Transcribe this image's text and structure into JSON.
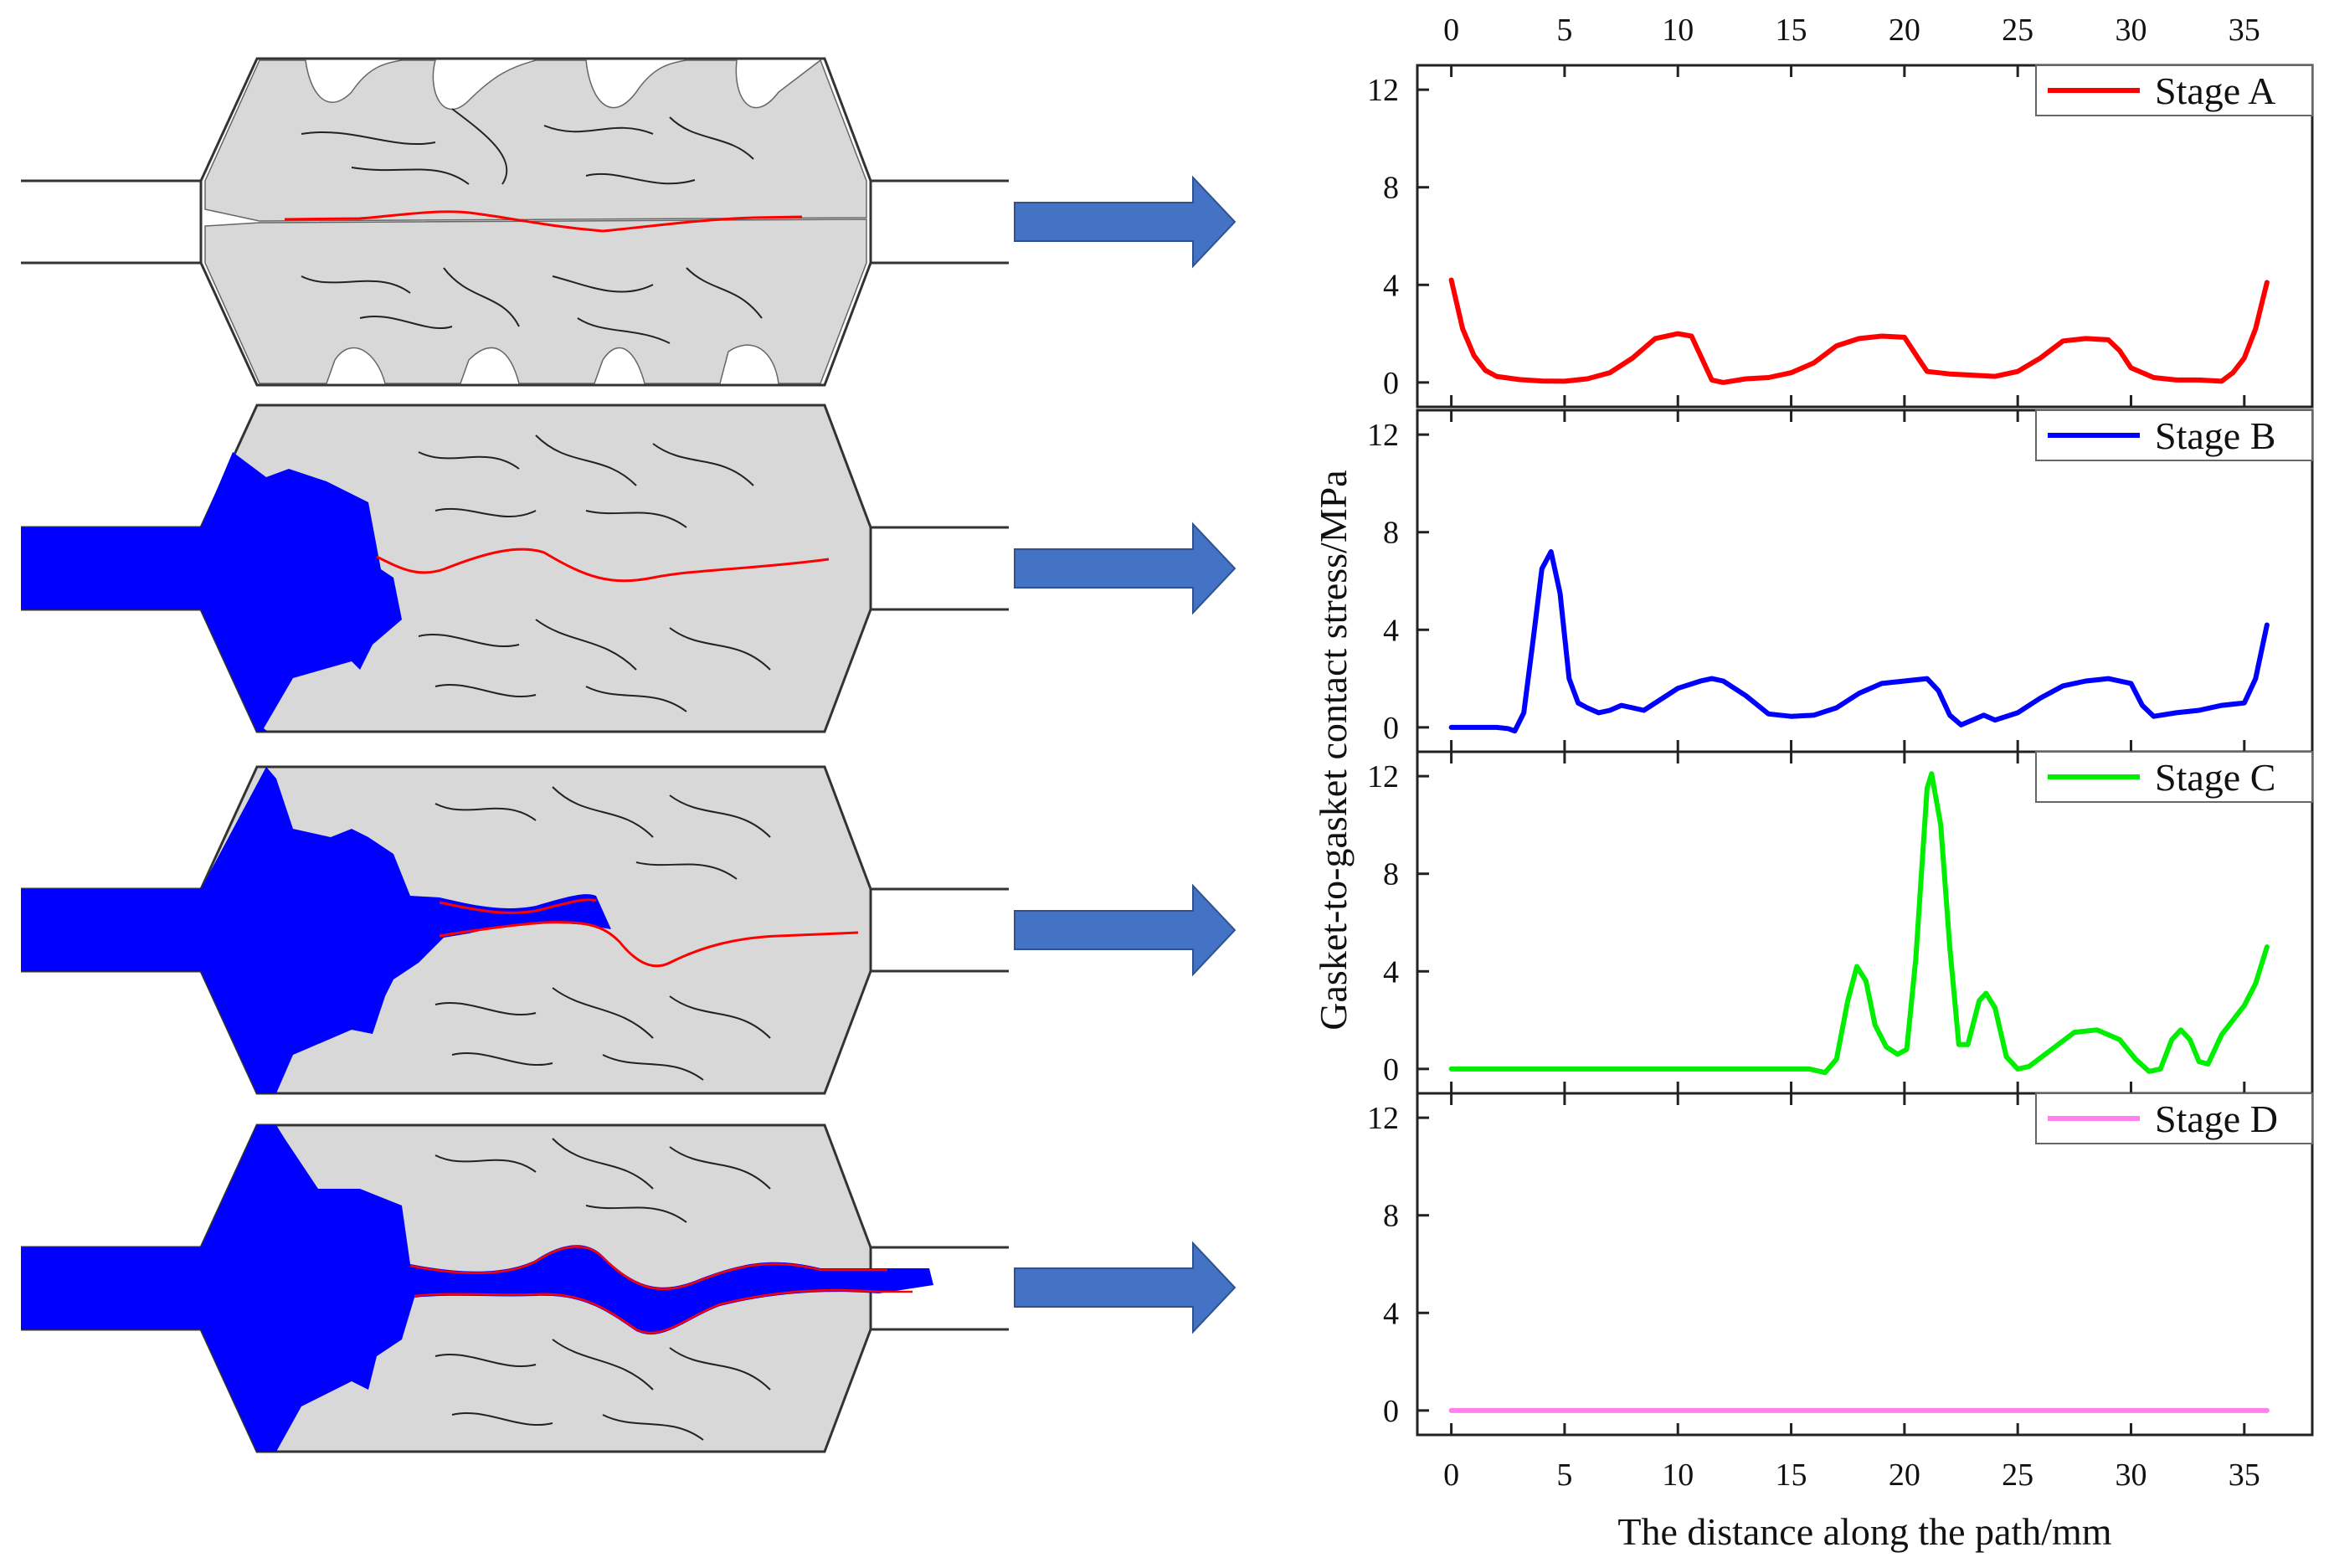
{
  "colors": {
    "stage_a": "#ff0000",
    "stage_b": "#0000ff",
    "stage_c": "#00ee00",
    "stage_d": "#ff80ee",
    "gasket_fill": "#d8d8d8",
    "fluid": "#0000ff",
    "crack_line": "#ff0000",
    "arrow": "#4472c4"
  },
  "diagram": {
    "panels": [
      "gasket-state-stage-a",
      "gasket-state-stage-b",
      "gasket-state-stage-c",
      "gasket-state-stage-d"
    ],
    "arrow_icon": "right-arrow-icon"
  },
  "chart_data": {
    "type": "line",
    "layout": "4 stacked panels sharing x axis",
    "xlabel": "The distance along the path/mm",
    "ylabel": "Gasket-to-gasket contact stress/MPa",
    "xlim": [
      -1.5,
      38
    ],
    "ylim": [
      -1,
      13
    ],
    "x_ticks": [
      0,
      5,
      10,
      15,
      20,
      25,
      30,
      35
    ],
    "y_ticks": [
      0,
      4,
      8,
      12
    ],
    "grid": false,
    "legend_position": "top-right",
    "series": [
      {
        "name": "Stage A",
        "color": "#ff0000",
        "points": [
          [
            0,
            4.2
          ],
          [
            0.5,
            2.2
          ],
          [
            1,
            1.1
          ],
          [
            1.5,
            0.5
          ],
          [
            2,
            0.25
          ],
          [
            3,
            0.12
          ],
          [
            4,
            0.06
          ],
          [
            5,
            0.05
          ],
          [
            6,
            0.15
          ],
          [
            7,
            0.4
          ],
          [
            8,
            1.0
          ],
          [
            9,
            1.8
          ],
          [
            10,
            2.0
          ],
          [
            10.6,
            1.9
          ],
          [
            11,
            1.1
          ],
          [
            11.5,
            0.1
          ],
          [
            12,
            0
          ],
          [
            13,
            0.15
          ],
          [
            14,
            0.2
          ],
          [
            15,
            0.4
          ],
          [
            16,
            0.8
          ],
          [
            17,
            1.5
          ],
          [
            18,
            1.8
          ],
          [
            19,
            1.9
          ],
          [
            20,
            1.85
          ],
          [
            20.6,
            1.0
          ],
          [
            21,
            0.45
          ],
          [
            22,
            0.35
          ],
          [
            23,
            0.3
          ],
          [
            24,
            0.25
          ],
          [
            25,
            0.45
          ],
          [
            26,
            1.0
          ],
          [
            27,
            1.7
          ],
          [
            28,
            1.8
          ],
          [
            29,
            1.75
          ],
          [
            29.5,
            1.3
          ],
          [
            30,
            0.6
          ],
          [
            31,
            0.2
          ],
          [
            32,
            0.1
          ],
          [
            33,
            0.1
          ],
          [
            34,
            0.05
          ],
          [
            34.5,
            0.4
          ],
          [
            35,
            1.0
          ],
          [
            35.5,
            2.2
          ],
          [
            36,
            4.1
          ]
        ]
      },
      {
        "name": "Stage B",
        "color": "#0000ff",
        "points": [
          [
            0,
            0
          ],
          [
            1,
            0
          ],
          [
            2,
            0
          ],
          [
            2.5,
            -0.05
          ],
          [
            2.8,
            -0.15
          ],
          [
            3.2,
            0.6
          ],
          [
            3.6,
            3.5
          ],
          [
            4,
            6.5
          ],
          [
            4.4,
            7.2
          ],
          [
            4.8,
            5.5
          ],
          [
            5.2,
            2.0
          ],
          [
            5.6,
            1.0
          ],
          [
            6,
            0.8
          ],
          [
            6.5,
            0.6
          ],
          [
            7,
            0.7
          ],
          [
            7.5,
            0.9
          ],
          [
            8,
            0.8
          ],
          [
            8.5,
            0.7
          ],
          [
            9,
            1.0
          ],
          [
            10,
            1.6
          ],
          [
            11,
            1.9
          ],
          [
            11.5,
            2.0
          ],
          [
            12,
            1.9
          ],
          [
            13,
            1.3
          ],
          [
            14,
            0.55
          ],
          [
            15,
            0.45
          ],
          [
            16,
            0.5
          ],
          [
            17,
            0.8
          ],
          [
            18,
            1.4
          ],
          [
            19,
            1.8
          ],
          [
            20,
            1.9
          ],
          [
            21,
            2.0
          ],
          [
            21.5,
            1.5
          ],
          [
            22,
            0.5
          ],
          [
            22.5,
            0.1
          ],
          [
            23,
            0.3
          ],
          [
            23.5,
            0.5
          ],
          [
            24,
            0.3
          ],
          [
            25,
            0.6
          ],
          [
            26,
            1.2
          ],
          [
            27,
            1.7
          ],
          [
            28,
            1.9
          ],
          [
            29,
            2.0
          ],
          [
            30,
            1.8
          ],
          [
            30.5,
            0.9
          ],
          [
            31,
            0.45
          ],
          [
            32,
            0.6
          ],
          [
            33,
            0.7
          ],
          [
            34,
            0.9
          ],
          [
            35,
            1.0
          ],
          [
            35.5,
            2.0
          ],
          [
            36,
            4.2
          ]
        ]
      },
      {
        "name": "Stage C",
        "color": "#00ee00",
        "points": [
          [
            0,
            0
          ],
          [
            5,
            0
          ],
          [
            10,
            0
          ],
          [
            15,
            0
          ],
          [
            15.8,
            0
          ],
          [
            16.5,
            -0.15
          ],
          [
            17,
            0.4
          ],
          [
            17.5,
            2.8
          ],
          [
            17.9,
            4.2
          ],
          [
            18.3,
            3.6
          ],
          [
            18.7,
            1.8
          ],
          [
            19.2,
            0.9
          ],
          [
            19.7,
            0.6
          ],
          [
            20.1,
            0.8
          ],
          [
            20.5,
            4.5
          ],
          [
            21,
            11.5
          ],
          [
            21.2,
            12.1
          ],
          [
            21.6,
            10.0
          ],
          [
            22,
            5.0
          ],
          [
            22.4,
            1.0
          ],
          [
            22.8,
            1.0
          ],
          [
            23.3,
            2.8
          ],
          [
            23.6,
            3.1
          ],
          [
            24,
            2.5
          ],
          [
            24.5,
            0.5
          ],
          [
            25,
            0
          ],
          [
            25.5,
            0.1
          ],
          [
            26.5,
            0.8
          ],
          [
            27.5,
            1.5
          ],
          [
            28.5,
            1.6
          ],
          [
            29.5,
            1.2
          ],
          [
            30.2,
            0.4
          ],
          [
            30.8,
            -0.1
          ],
          [
            31.3,
            0
          ],
          [
            31.8,
            1.2
          ],
          [
            32.2,
            1.6
          ],
          [
            32.6,
            1.2
          ],
          [
            33,
            0.3
          ],
          [
            33.4,
            0.2
          ],
          [
            34,
            1.4
          ],
          [
            35,
            2.6
          ],
          [
            35.5,
            3.5
          ],
          [
            36,
            5.0
          ]
        ]
      },
      {
        "name": "Stage D",
        "color": "#ff80ee",
        "points": [
          [
            0,
            0
          ],
          [
            36,
            0
          ]
        ]
      }
    ]
  }
}
